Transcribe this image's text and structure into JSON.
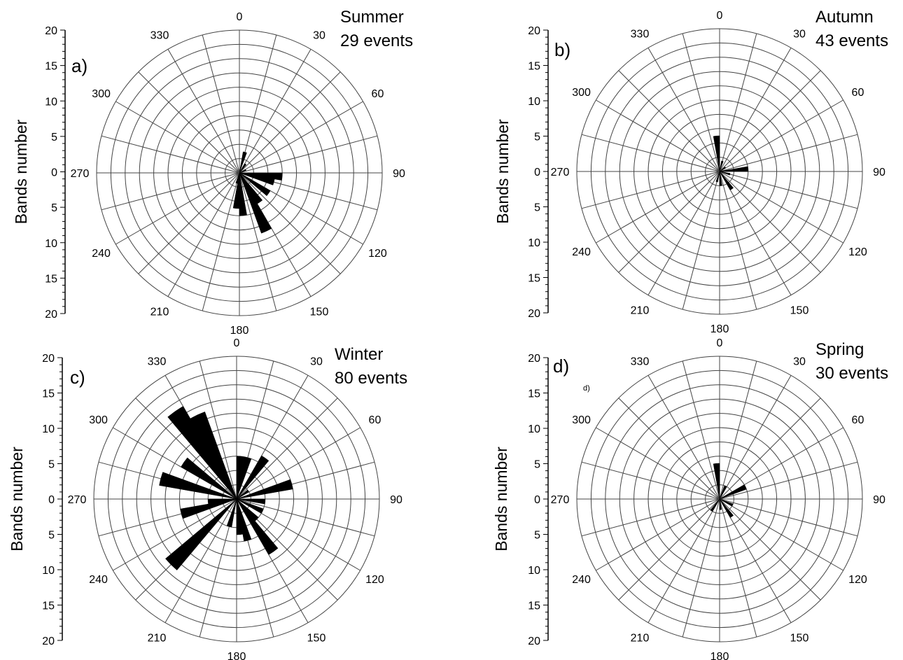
{
  "chart_data": [
    {
      "type": "polar-bar",
      "panel_label": "a)",
      "title": "Summer",
      "subtitle": "29 events",
      "ylabel": "Bands number",
      "r_range": [
        0,
        20
      ],
      "r_ticks": [
        "0",
        "5",
        "10",
        "15",
        "20"
      ],
      "angle_ticks": [
        "0",
        "30",
        "60",
        "90",
        "120",
        "150",
        "180",
        "210",
        "240",
        "270",
        "300",
        "330"
      ],
      "bin_width_deg": 10,
      "grid": true,
      "bars": [
        {
          "angle": 15,
          "value": 3
        },
        {
          "angle": 35,
          "value": 1.5
        },
        {
          "angle": 65,
          "value": 1
        },
        {
          "angle": 95,
          "value": 6
        },
        {
          "angle": 105,
          "value": 5
        },
        {
          "angle": 125,
          "value": 5
        },
        {
          "angle": 145,
          "value": 5
        },
        {
          "angle": 155,
          "value": 9
        },
        {
          "angle": 175,
          "value": 6
        },
        {
          "angle": 185,
          "value": 5
        },
        {
          "angle": 195,
          "value": 1.5
        }
      ]
    },
    {
      "type": "polar-bar",
      "panel_label": "b)",
      "title": "Autumn",
      "subtitle": "43 events",
      "ylabel": "Bands number",
      "r_range": [
        0,
        20
      ],
      "r_ticks": [
        "0",
        "5",
        "10",
        "15",
        "20"
      ],
      "angle_ticks": [
        "0",
        "30",
        "60",
        "90",
        "120",
        "150",
        "180",
        "210",
        "240",
        "270",
        "300",
        "330"
      ],
      "bin_width_deg": 10,
      "grid": true,
      "bars": [
        {
          "angle": 355,
          "value": 5
        },
        {
          "angle": 15,
          "value": 1.5
        },
        {
          "angle": 55,
          "value": 1
        },
        {
          "angle": 85,
          "value": 4
        },
        {
          "angle": 105,
          "value": 1.5
        },
        {
          "angle": 145,
          "value": 3
        },
        {
          "angle": 175,
          "value": 2
        },
        {
          "angle": 195,
          "value": 1.5
        }
      ]
    },
    {
      "type": "polar-bar",
      "panel_label": "c)",
      "title": "Winter",
      "subtitle": "80 events",
      "ylabel": "Bands number",
      "r_range": [
        0,
        20
      ],
      "r_ticks": [
        "0",
        "5",
        "10",
        "15",
        "20"
      ],
      "angle_ticks": [
        "0",
        "30",
        "60",
        "90",
        "120",
        "150",
        "180",
        "210",
        "240",
        "270",
        "300",
        "330"
      ],
      "bin_width_deg": 10,
      "grid": true,
      "bars": [
        {
          "angle": 5,
          "value": 6
        },
        {
          "angle": 15,
          "value": 6
        },
        {
          "angle": 35,
          "value": 7
        },
        {
          "angle": 55,
          "value": 2
        },
        {
          "angle": 75,
          "value": 8
        },
        {
          "angle": 95,
          "value": 4
        },
        {
          "angle": 115,
          "value": 4
        },
        {
          "angle": 135,
          "value": 4
        },
        {
          "angle": 145,
          "value": 9
        },
        {
          "angle": 165,
          "value": 6
        },
        {
          "angle": 175,
          "value": 5
        },
        {
          "angle": 195,
          "value": 4
        },
        {
          "angle": 225,
          "value": 13
        },
        {
          "angle": 255,
          "value": 8
        },
        {
          "angle": 265,
          "value": 4
        },
        {
          "angle": 285,
          "value": 11
        },
        {
          "angle": 305,
          "value": 9
        },
        {
          "angle": 325,
          "value": 15
        },
        {
          "angle": 335,
          "value": 13
        }
      ]
    },
    {
      "type": "polar-bar",
      "panel_label": "d)",
      "panel_label_small": "d)",
      "title": "Spring",
      "subtitle": "30 events",
      "ylabel": "Bands number",
      "r_range": [
        0,
        20
      ],
      "r_ticks": [
        "0",
        "5",
        "10",
        "15",
        "20"
      ],
      "angle_ticks": [
        "0",
        "30",
        "60",
        "90",
        "120",
        "150",
        "180",
        "210",
        "240",
        "270",
        "300",
        "330"
      ],
      "bin_width_deg": 10,
      "grid": true,
      "bars": [
        {
          "angle": 355,
          "value": 5
        },
        {
          "angle": 25,
          "value": 2
        },
        {
          "angle": 65,
          "value": 4
        },
        {
          "angle": 115,
          "value": 2
        },
        {
          "angle": 145,
          "value": 3
        },
        {
          "angle": 175,
          "value": 1.5
        },
        {
          "angle": 215,
          "value": 2
        }
      ]
    }
  ]
}
